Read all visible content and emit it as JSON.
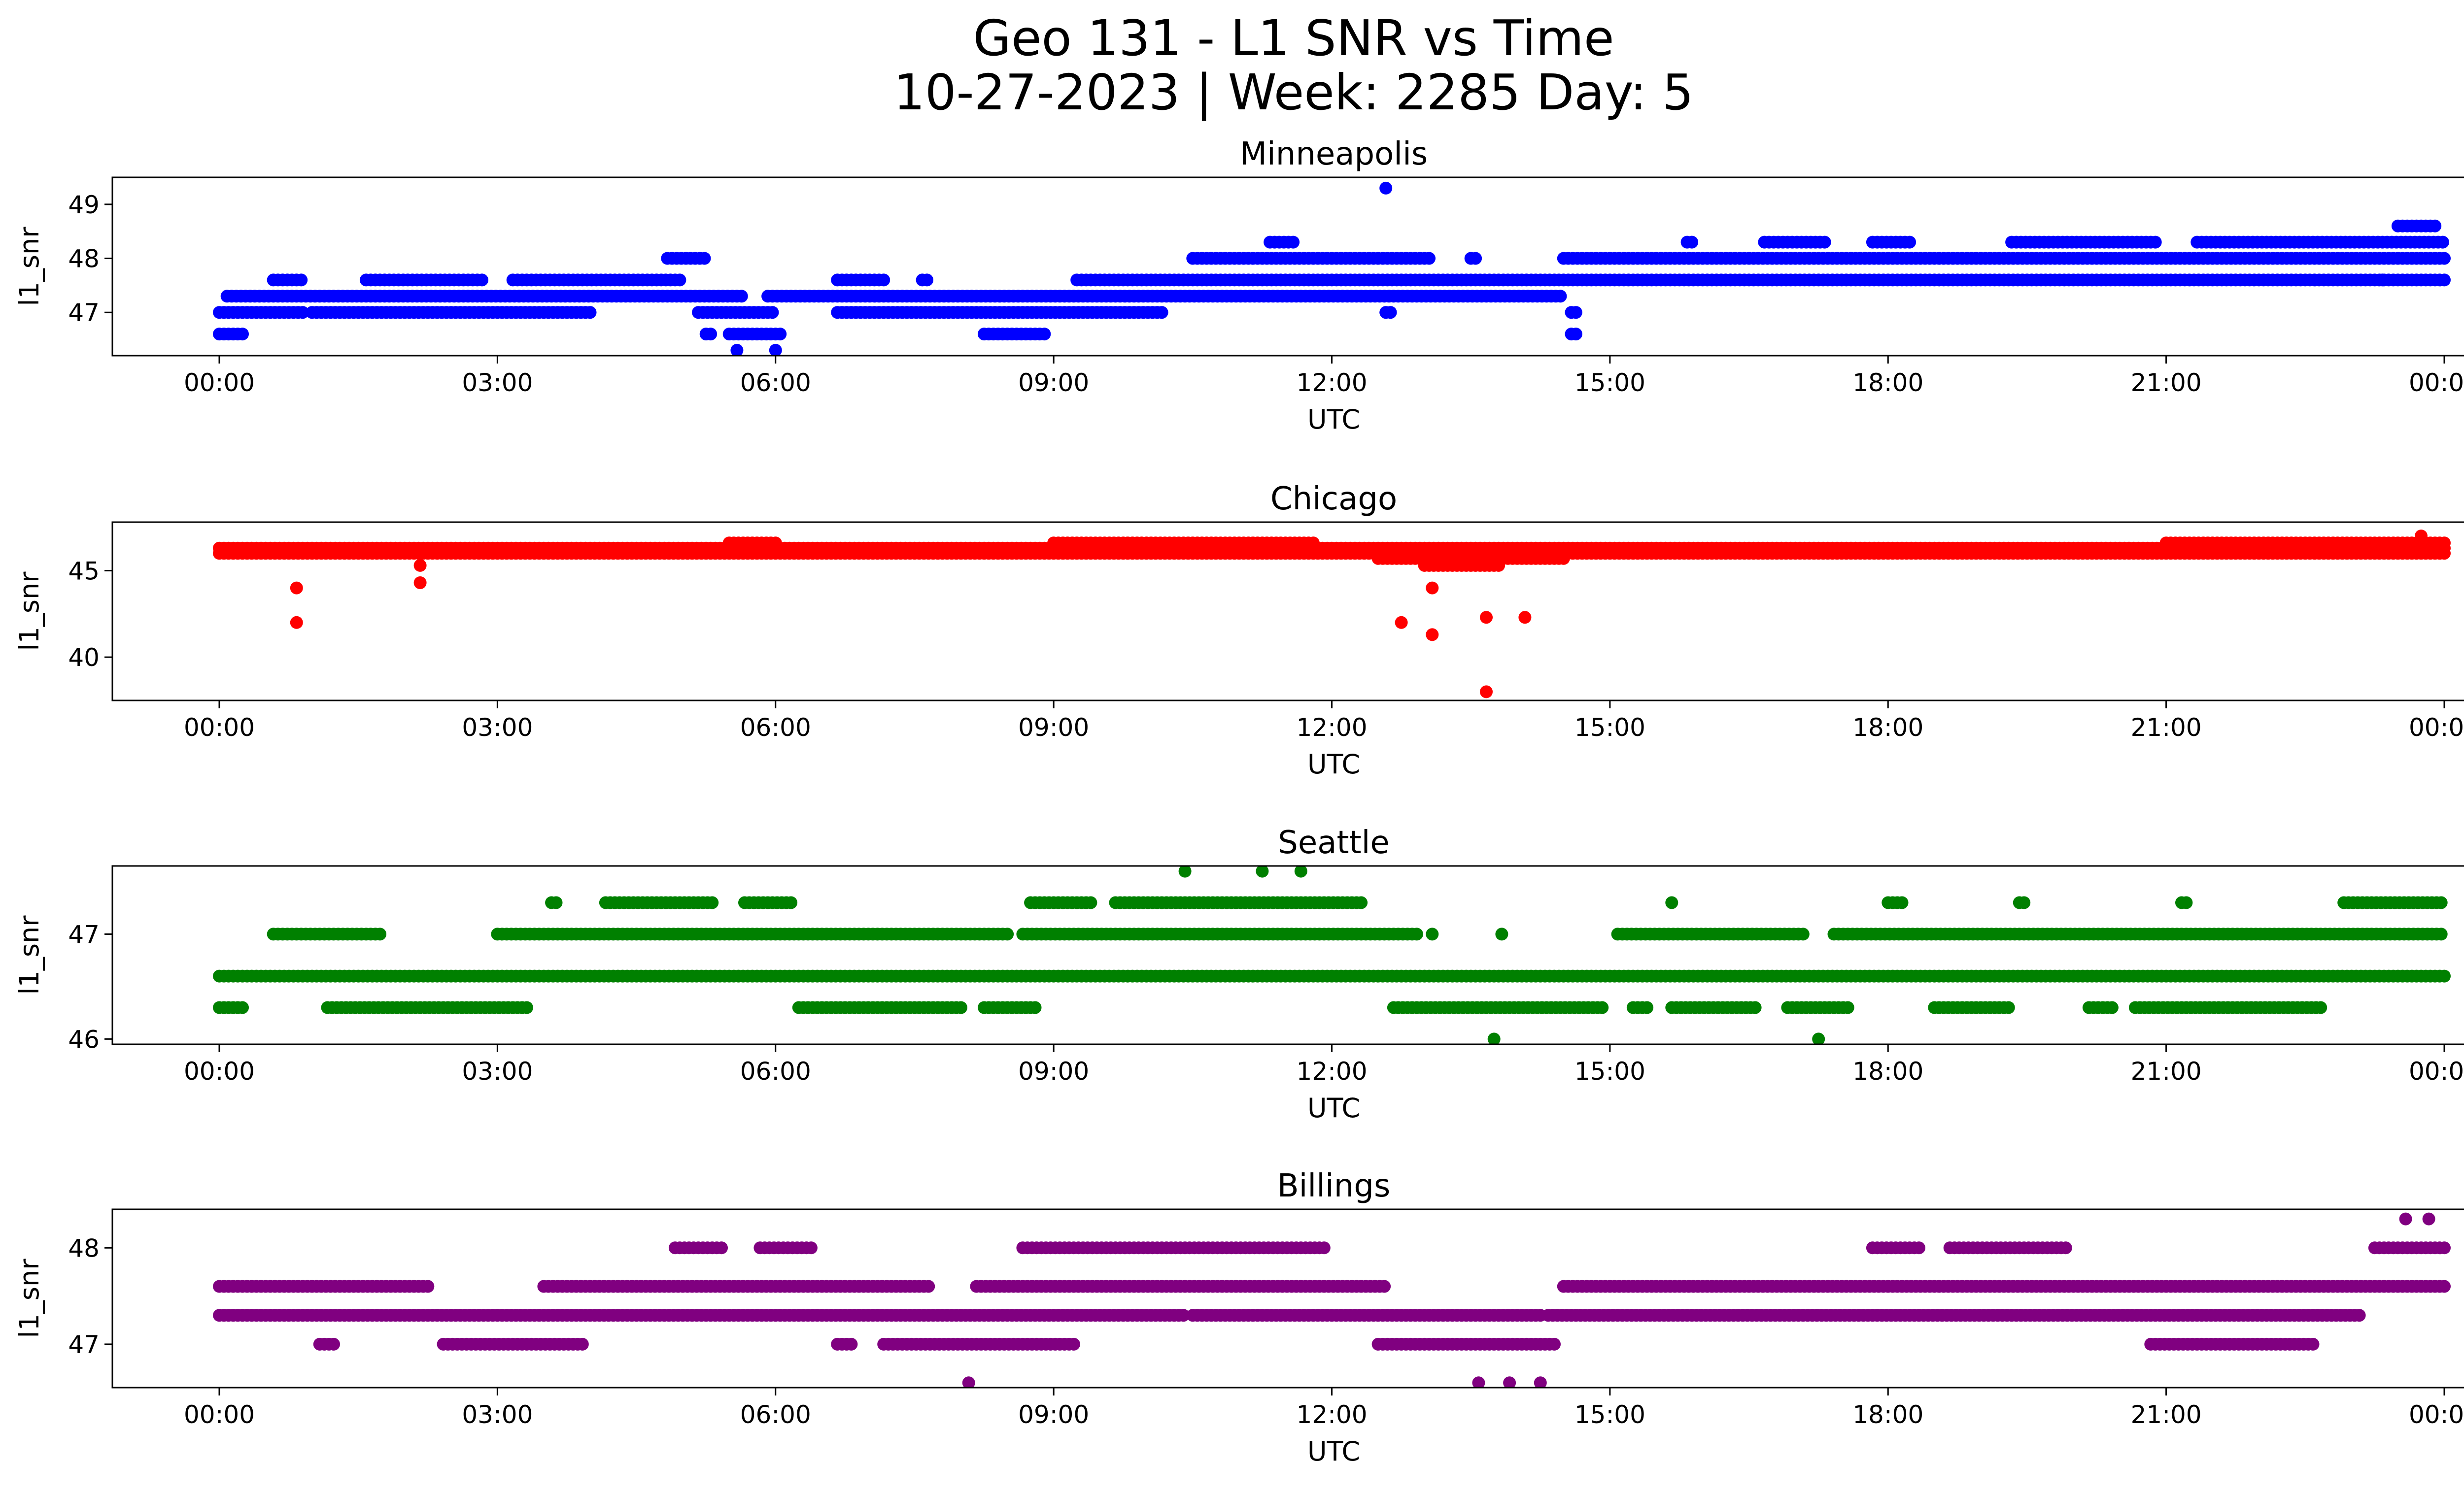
{
  "figure": {
    "title_line1": "Geo 131 - L1 SNR vs Time",
    "title_line2": "10-27-2023 | Week: 2285 Day: 5"
  },
  "chart_data": [
    {
      "type": "scatter",
      "title": "Minneapolis",
      "xlabel": "UTC",
      "ylabel": "l1_snr",
      "color": "#0000ff",
      "xlim": [
        "00:00",
        "24:00"
      ],
      "ylim": [
        46.2,
        49.5
      ],
      "yticks": [
        47,
        48,
        49
      ],
      "xticks": [
        "00:00",
        "03:00",
        "06:00",
        "09:00",
        "12:00",
        "15:00",
        "18:00",
        "21:00",
        "00:00"
      ],
      "bands": [
        {
          "y": 46.6,
          "ranges": [
            [
              "00:00",
              "00:15"
            ],
            [
              "05:15",
              "05:20"
            ],
            [
              "05:30",
              "06:05"
            ],
            [
              "08:15",
              "08:55"
            ],
            [
              "14:35",
              "14:40"
            ]
          ]
        },
        {
          "y": 47.0,
          "ranges": [
            [
              "00:00",
              "00:55"
            ],
            [
              "01:00",
              "04:00"
            ],
            [
              "05:10",
              "06:00"
            ],
            [
              "06:40",
              "10:10"
            ],
            [
              "12:35",
              "12:40"
            ],
            [
              "14:35",
              "14:40"
            ]
          ]
        },
        {
          "y": 47.3,
          "ranges": [
            [
              "00:05",
              "05:40"
            ],
            [
              "05:55",
              "14:30"
            ]
          ]
        },
        {
          "y": 47.6,
          "ranges": [
            [
              "00:35",
              "00:55"
            ],
            [
              "01:35",
              "02:50"
            ],
            [
              "03:10",
              "05:00"
            ],
            [
              "06:40",
              "07:10"
            ],
            [
              "07:35",
              "07:40"
            ],
            [
              "09:15",
              "24:00"
            ]
          ]
        },
        {
          "y": 48.0,
          "ranges": [
            [
              "04:50",
              "05:15"
            ],
            [
              "10:30",
              "13:05"
            ],
            [
              "13:30",
              "13:35"
            ],
            [
              "14:30",
              "24:00"
            ]
          ]
        },
        {
          "y": 48.3,
          "ranges": [
            [
              "11:20",
              "11:35"
            ],
            [
              "15:50",
              "15:55"
            ],
            [
              "16:40",
              "17:20"
            ],
            [
              "17:50",
              "18:15"
            ],
            [
              "19:20",
              "20:55"
            ],
            [
              "21:20",
              "24:00"
            ]
          ]
        },
        {
          "y": 48.6,
          "ranges": [
            [
              "23:30",
              "23:55"
            ]
          ]
        }
      ],
      "outliers": [
        [
          "06:00",
          46.3
        ],
        [
          "05:35",
          46.3
        ],
        [
          "12:35",
          49.3
        ],
        [
          "23:20",
          47.6
        ]
      ]
    },
    {
      "type": "scatter",
      "title": "Chicago",
      "xlabel": "UTC",
      "ylabel": "l1_snr",
      "color": "#ff0000",
      "xlim": [
        "00:00",
        "24:00"
      ],
      "ylim": [
        37.5,
        47.8
      ],
      "yticks": [
        40,
        45
      ],
      "xticks": [
        "00:00",
        "03:00",
        "06:00",
        "09:00",
        "12:00",
        "15:00",
        "18:00",
        "21:00",
        "00:00"
      ],
      "bands": [
        {
          "y": 46.3,
          "ranges": [
            [
              "00:00",
              "24:00"
            ]
          ]
        },
        {
          "y": 46.0,
          "ranges": [
            [
              "00:00",
              "24:00"
            ]
          ]
        },
        {
          "y": 46.6,
          "ranges": [
            [
              "05:30",
              "06:00"
            ],
            [
              "09:00",
              "11:50"
            ],
            [
              "21:00",
              "24:00"
            ]
          ]
        },
        {
          "y": 45.7,
          "ranges": [
            [
              "12:30",
              "14:30"
            ]
          ]
        },
        {
          "y": 45.3,
          "ranges": [
            [
              "13:00",
              "13:50"
            ]
          ]
        }
      ],
      "outliers": [
        [
          "00:50",
          44.0
        ],
        [
          "00:50",
          42.0
        ],
        [
          "02:10",
          44.3
        ],
        [
          "02:10",
          45.3
        ],
        [
          "12:45",
          42.0
        ],
        [
          "13:05",
          44.0
        ],
        [
          "13:05",
          41.3
        ],
        [
          "13:40",
          42.3
        ],
        [
          "14:05",
          42.3
        ],
        [
          "13:40",
          38.0
        ],
        [
          "23:45",
          47.0
        ]
      ]
    },
    {
      "type": "scatter",
      "title": "Seattle",
      "xlabel": "UTC",
      "ylabel": "l1_snr",
      "color": "#008000",
      "xlim": [
        "00:00",
        "24:00"
      ],
      "ylim": [
        45.95,
        47.65
      ],
      "yticks": [
        46,
        47
      ],
      "xticks": [
        "00:00",
        "03:00",
        "06:00",
        "09:00",
        "12:00",
        "15:00",
        "18:00",
        "21:00",
        "00:00"
      ],
      "bands": [
        {
          "y": 46.3,
          "ranges": [
            [
              "00:00",
              "00:15"
            ],
            [
              "01:10",
              "03:20"
            ],
            [
              "06:15",
              "08:00"
            ],
            [
              "08:15",
              "08:50"
            ],
            [
              "12:40",
              "14:55"
            ],
            [
              "15:15",
              "15:25"
            ],
            [
              "15:40",
              "16:35"
            ],
            [
              "16:55",
              "17:35"
            ],
            [
              "18:30",
              "19:20"
            ],
            [
              "20:10",
              "20:25"
            ],
            [
              "20:40",
              "22:40"
            ]
          ]
        },
        {
          "y": 46.6,
          "ranges": [
            [
              "00:00",
              "24:00"
            ]
          ]
        },
        {
          "y": 47.0,
          "ranges": [
            [
              "00:35",
              "01:45"
            ],
            [
              "03:00",
              "08:30"
            ],
            [
              "08:40",
              "12:55"
            ],
            [
              "15:05",
              "17:05"
            ],
            [
              "17:25",
              "24:00"
            ]
          ]
        },
        {
          "y": 47.3,
          "ranges": [
            [
              "03:35",
              "03:40"
            ],
            [
              "04:10",
              "05:20"
            ],
            [
              "05:40",
              "06:10"
            ],
            [
              "08:45",
              "09:25"
            ],
            [
              "09:40",
              "12:20"
            ],
            [
              "18:00",
              "18:10"
            ],
            [
              "19:25",
              "19:30"
            ],
            [
              "21:10",
              "21:15"
            ],
            [
              "22:55",
              "24:00"
            ]
          ]
        }
      ],
      "outliers": [
        [
          "10:25",
          47.6
        ],
        [
          "11:15",
          47.6
        ],
        [
          "11:40",
          47.6
        ],
        [
          "13:45",
          46.0
        ],
        [
          "17:15",
          46.0
        ],
        [
          "13:05",
          47.0
        ],
        [
          "13:50",
          47.0
        ],
        [
          "15:40",
          47.3
        ]
      ]
    },
    {
      "type": "scatter",
      "title": "Billings",
      "xlabel": "UTC",
      "ylabel": "l1_snr",
      "color": "#800080",
      "xlim": [
        "00:00",
        "24:00"
      ],
      "ylim": [
        46.55,
        48.4
      ],
      "yticks": [
        47,
        48
      ],
      "xticks": [
        "00:00",
        "03:00",
        "06:00",
        "09:00",
        "12:00",
        "15:00",
        "18:00",
        "21:00",
        "00:00"
      ],
      "bands": [
        {
          "y": 47.0,
          "ranges": [
            [
              "01:05",
              "01:15"
            ],
            [
              "02:25",
              "03:55"
            ],
            [
              "06:40",
              "06:50"
            ],
            [
              "07:10",
              "09:15"
            ],
            [
              "12:30",
              "14:25"
            ],
            [
              "20:50",
              "22:35"
            ]
          ]
        },
        {
          "y": 47.3,
          "ranges": [
            [
              "00:00",
              "10:25"
            ],
            [
              "10:30",
              "14:15"
            ],
            [
              "14:20",
              "23:05"
            ]
          ]
        },
        {
          "y": 47.6,
          "ranges": [
            [
              "00:00",
              "02:15"
            ],
            [
              "03:30",
              "07:40"
            ],
            [
              "08:10",
              "12:35"
            ],
            [
              "14:30",
              "24:00"
            ]
          ]
        },
        {
          "y": 48.0,
          "ranges": [
            [
              "04:55",
              "05:25"
            ],
            [
              "05:50",
              "06:25"
            ],
            [
              "08:40",
              "11:55"
            ],
            [
              "17:50",
              "18:20"
            ],
            [
              "18:40",
              "19:55"
            ],
            [
              "23:15",
              "24:00"
            ]
          ]
        }
      ],
      "outliers": [
        [
          "08:05",
          46.6
        ],
        [
          "13:35",
          46.6
        ],
        [
          "13:55",
          46.6
        ],
        [
          "14:15",
          46.6
        ],
        [
          "23:35",
          48.3
        ],
        [
          "23:50",
          48.3
        ]
      ]
    }
  ]
}
